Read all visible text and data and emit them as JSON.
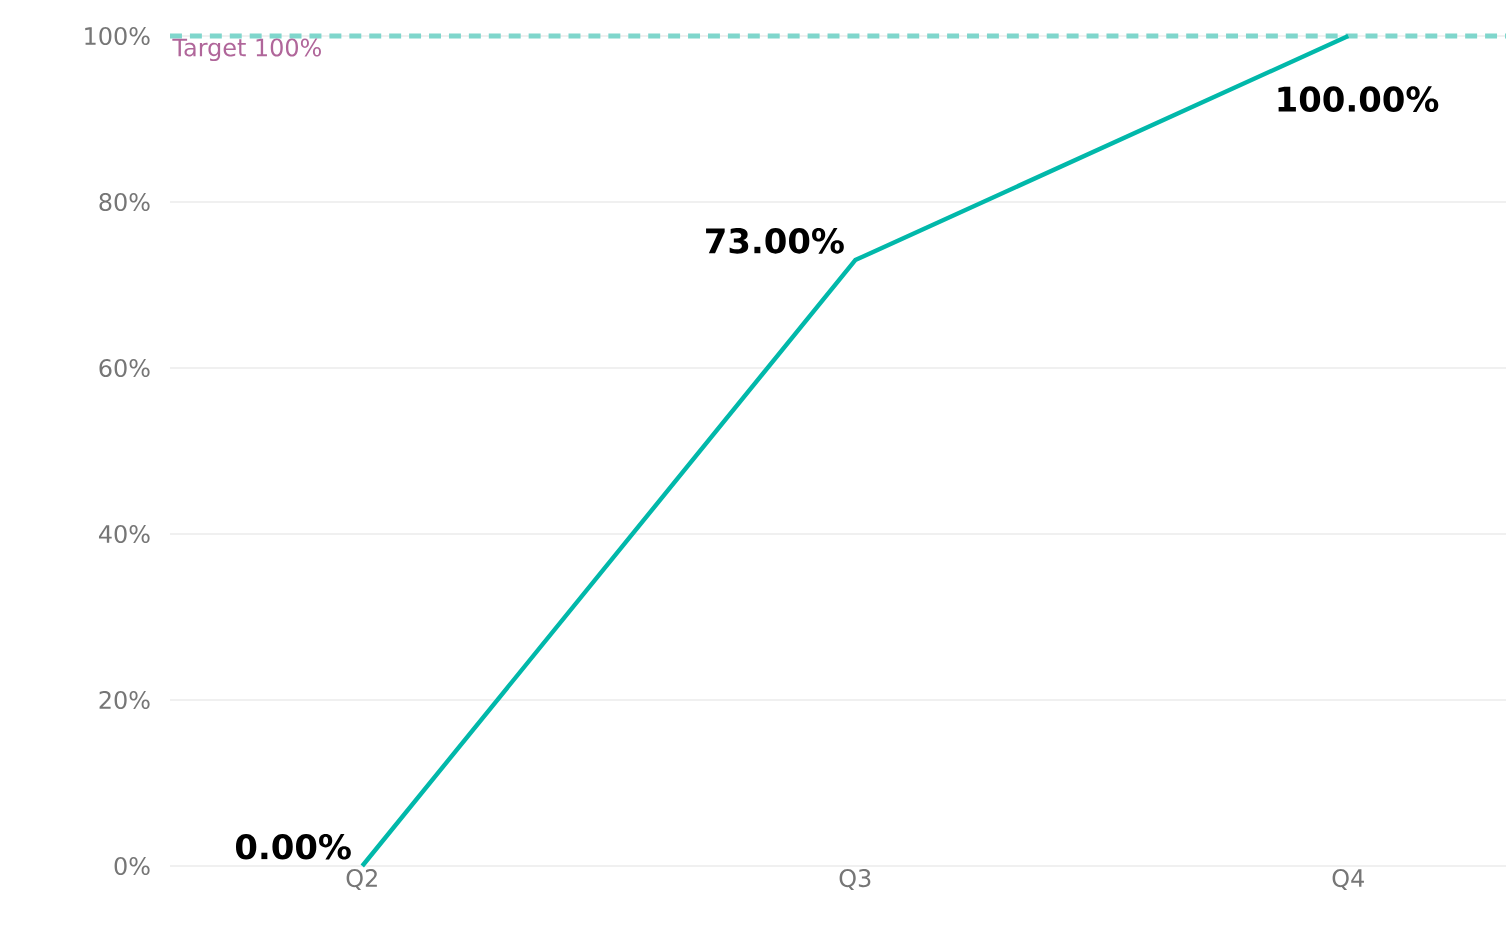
{
  "chart_data": {
    "type": "line",
    "categories": [
      "Q2",
      "Q3",
      "Q4"
    ],
    "series": [
      {
        "color": "#01b8aa",
        "values": [
          0,
          73,
          100
        ],
        "value_labels": [
          "0.00%",
          "73.00%",
          "100.00%"
        ]
      }
    ],
    "ylim": [
      0,
      100
    ],
    "yticks": [
      {
        "value": 0,
        "label": "0%"
      },
      {
        "value": 20,
        "label": "20%"
      },
      {
        "value": 40,
        "label": "40%"
      },
      {
        "value": 60,
        "label": "60%"
      },
      {
        "value": 80,
        "label": "80%"
      },
      {
        "value": 100,
        "label": "100%"
      }
    ],
    "grid": "y",
    "ref_lines": [
      {
        "axis": "y",
        "value": 100,
        "label": "Target 100%",
        "color": "#7fd6cc",
        "line_style": "dashed"
      }
    ],
    "marker": "none",
    "line_style": "solid"
  }
}
